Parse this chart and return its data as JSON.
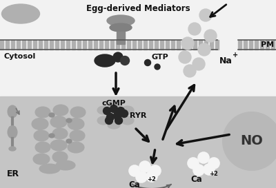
{
  "title": "Egg-derived Mediators",
  "bg_top": "#f0f0f0",
  "bg_bottom": "#c8c8c8",
  "labels": {
    "title": "Egg-derived Mediators",
    "cytosol": "Cytosol",
    "gtp": "GTP",
    "pm": "PM",
    "na": "Na",
    "cgmp": "cGMP",
    "ryr": "RYR",
    "er": "ER",
    "ca1": "Ca",
    "ca2": "Ca",
    "no": "NO"
  },
  "figsize": [
    4.0,
    2.73
  ],
  "dpi": 100
}
